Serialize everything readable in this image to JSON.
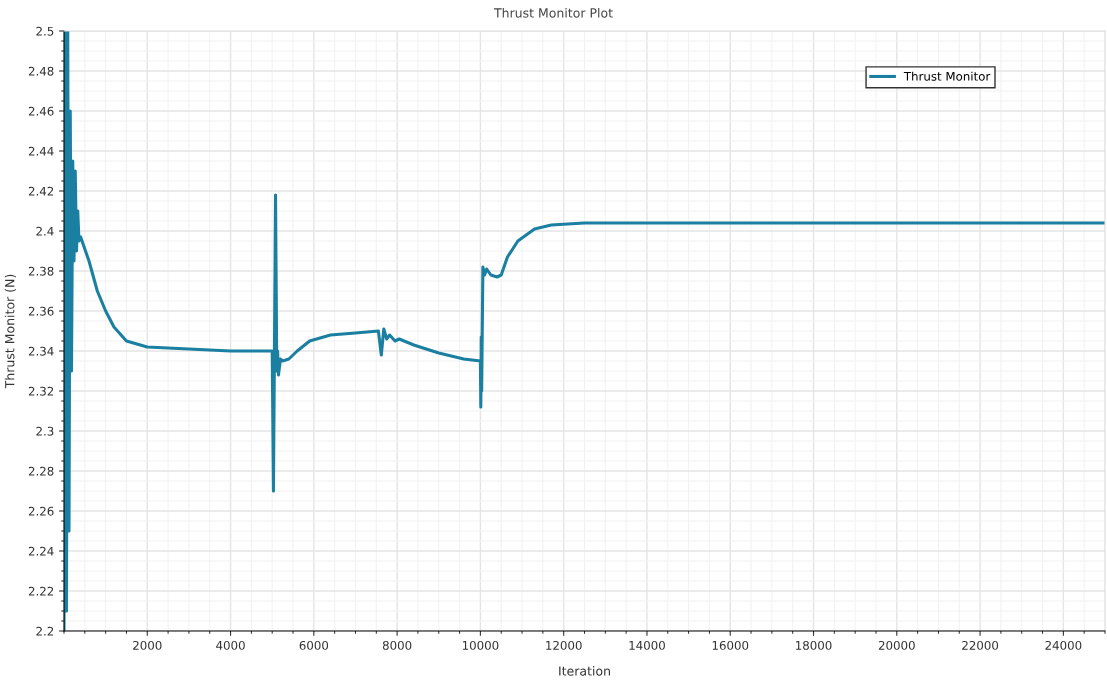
{
  "chart_data": {
    "type": "line",
    "title": "Thrust Monitor Plot",
    "xlabel": "Iteration",
    "ylabel": "Thrust Monitor (N)",
    "x": [
      0,
      30,
      60,
      90,
      120,
      150,
      180,
      210,
      240,
      270,
      300,
      330,
      360,
      400,
      600,
      800,
      1000,
      1200,
      1500,
      2000,
      3000,
      4000,
      5000,
      5030,
      5080,
      5110,
      5130,
      5150,
      5200,
      5250,
      5400,
      5600,
      5900,
      6400,
      7000,
      7550,
      7620,
      7680,
      7750,
      7820,
      7950,
      8050,
      8400,
      9000,
      9600,
      10000,
      10010,
      10020,
      10030,
      10060,
      10100,
      10150,
      10250,
      10400,
      10500,
      10650,
      10900,
      11300,
      11700,
      12500,
      25000
    ],
    "series": [
      {
        "name": "Thrust Monitor",
        "color": "#1a7fa0",
        "values": [
          2.2,
          2.5,
          2.21,
          2.5,
          2.25,
          2.46,
          2.33,
          2.435,
          2.385,
          2.43,
          2.39,
          2.41,
          2.395,
          2.397,
          2.385,
          2.37,
          2.36,
          2.352,
          2.345,
          2.342,
          2.341,
          2.34,
          2.34,
          2.27,
          2.418,
          2.33,
          2.34,
          2.328,
          2.336,
          2.335,
          2.336,
          2.34,
          2.345,
          2.348,
          2.349,
          2.35,
          2.338,
          2.351,
          2.346,
          2.348,
          2.345,
          2.346,
          2.343,
          2.339,
          2.336,
          2.335,
          2.312,
          2.347,
          2.32,
          2.382,
          2.378,
          2.381,
          2.378,
          2.377,
          2.378,
          2.387,
          2.395,
          2.401,
          2.403,
          2.404,
          2.404
        ]
      }
    ],
    "xlim": [
      0,
      25000
    ],
    "xticks": [
      2000,
      4000,
      6000,
      8000,
      10000,
      12000,
      14000,
      16000,
      18000,
      20000,
      22000,
      24000
    ],
    "ylim": [
      2.2,
      2.5
    ],
    "yticks": [
      2.2,
      2.22,
      2.24,
      2.26,
      2.28,
      2.3,
      2.32,
      2.34,
      2.36,
      2.38,
      2.4,
      2.42,
      2.44,
      2.46,
      2.48,
      2.5
    ],
    "grid": true,
    "legend": "top right",
    "marker": "none",
    "line_style": "solid"
  }
}
